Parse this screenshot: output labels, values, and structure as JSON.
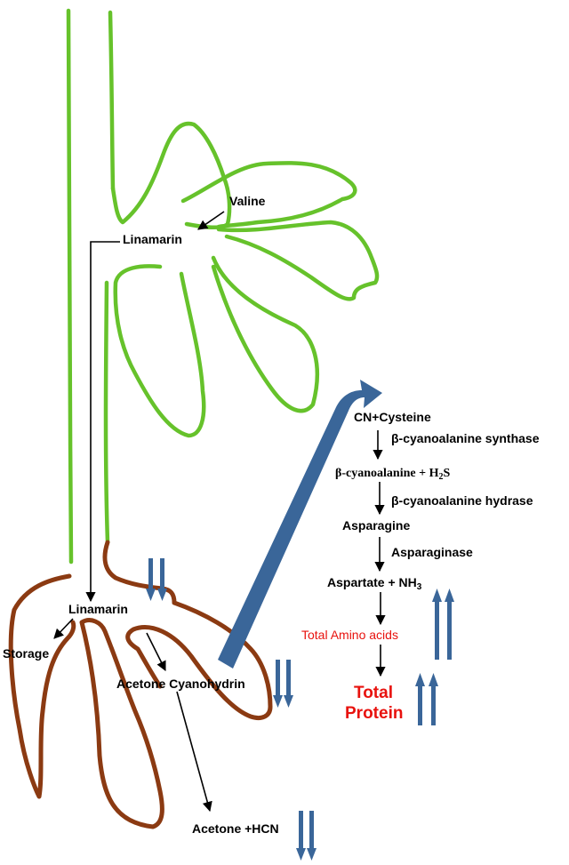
{
  "labels": {
    "valine": "Valine",
    "linamarin_leaf": "Linamarin",
    "linamarin_root": "Linamarin",
    "storage": "Storage",
    "acetone_cyanohydrin": "Acetone  Cyanohydrin",
    "acetone_hcn": "Acetone +HCN",
    "cn_cysteine": "CN+Cysteine",
    "enzyme1": "β-cyanoalanine synthase",
    "cyanoalanine_h2s": "β-cyanoalanine + H",
    "h2s_sub": "2",
    "h2s_s": "S",
    "enzyme2": "β-cyanoalanine hydrase",
    "asparagine": "Asparagine",
    "enzyme3": "Asparaginase",
    "aspartate": "Aspartate + NH",
    "nh3_sub": "3",
    "total_amino_acids": "Total Amino acids",
    "total": "Total",
    "protein": "Protein"
  },
  "indicators": {
    "root_linamarin": "down",
    "acetone_cyanohydrin": "down",
    "acetone_hcn": "down",
    "total_amino_acids": "up",
    "total_protein": "up"
  },
  "colors": {
    "leaf": "#66c22b",
    "root": "#8b3a12",
    "indicator": "#3a6699",
    "highlight_text": "#e8120e"
  }
}
